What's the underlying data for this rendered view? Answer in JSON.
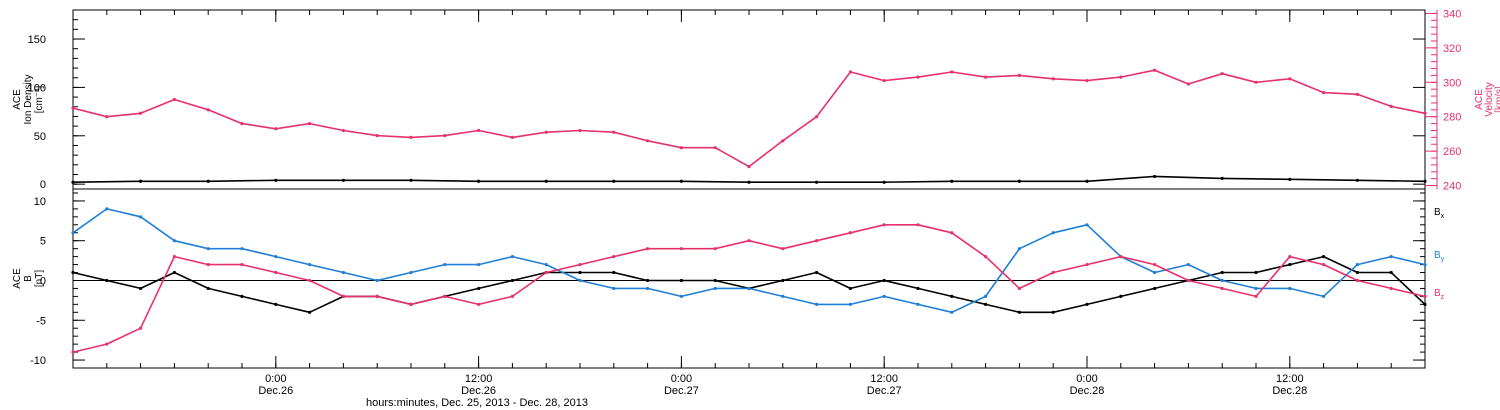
{
  "colors": {
    "axis": "#000000",
    "density": "#000000",
    "velocity": "#e8306a",
    "bx": "#000000",
    "by": "#1f7fd6",
    "bz": "#e8306a",
    "background": "#ffffff"
  },
  "chart_data": [
    {
      "type": "scatter",
      "panel": "plasma",
      "left_axis": {
        "label_lines": [
          "ACE",
          "Ion Density",
          "[cm⁻³]"
        ],
        "ylim": [
          -5,
          180
        ],
        "ticks": [
          0,
          50,
          100,
          150
        ],
        "tick_labels": [
          "0",
          "50",
          "100",
          "150"
        ]
      },
      "right_axis": {
        "label_lines": [
          "ACE",
          "Velocity",
          "[km/s]"
        ],
        "ylim": [
          238,
          342
        ],
        "ticks": [
          240,
          260,
          280,
          300,
          320,
          340
        ],
        "tick_labels": [
          "240",
          "260",
          "280",
          "300",
          "320",
          "340"
        ],
        "color": "#e8306a"
      },
      "xlim_hours": [
        0,
        80
      ],
      "series": [
        {
          "axis": "left",
          "color": "#000000",
          "x": [
            0,
            4,
            8,
            12,
            16,
            20,
            24,
            28,
            32,
            36,
            40,
            44,
            48,
            52,
            56,
            60,
            64,
            68,
            72,
            76,
            80
          ],
          "y": [
            2,
            3,
            3,
            4,
            4,
            4,
            3,
            3,
            3,
            3,
            2,
            2,
            2,
            3,
            3,
            3,
            8,
            6,
            5,
            4,
            3
          ]
        },
        {
          "axis": "right",
          "color": "#e8306a",
          "x": [
            0,
            2,
            4,
            6,
            8,
            10,
            12,
            14,
            16,
            18,
            20,
            22,
            24,
            26,
            28,
            30,
            32,
            34,
            36,
            38,
            40,
            42,
            44,
            46,
            48,
            50,
            52,
            54,
            56,
            58,
            60,
            62,
            64,
            66,
            68,
            70,
            72,
            74,
            76,
            78,
            80
          ],
          "y": [
            285,
            280,
            282,
            290,
            284,
            276,
            273,
            276,
            272,
            269,
            268,
            269,
            272,
            268,
            271,
            272,
            271,
            266,
            262,
            262,
            251,
            266,
            280,
            306,
            301,
            303,
            306,
            303,
            304,
            302,
            301,
            303,
            307,
            299,
            305,
            300,
            302,
            294,
            293,
            286,
            282
          ]
        }
      ]
    },
    {
      "type": "scatter",
      "panel": "magnetic_field",
      "left_axis": {
        "label_lines": [
          "ACE",
          "B",
          "[nT]"
        ],
        "ylim": [
          -11,
          11.5
        ],
        "ticks": [
          -10,
          -5,
          0,
          5,
          10
        ],
        "tick_labels": [
          "-10",
          "-5",
          "0",
          "5",
          "10"
        ]
      },
      "xlim_hours": [
        0,
        80
      ],
      "zero_line": true,
      "legend": [
        {
          "label": "B",
          "sub": "x",
          "color": "#000000"
        },
        {
          "label": "B",
          "sub": "y",
          "color": "#1f7fd6"
        },
        {
          "label": "B",
          "sub": "z",
          "color": "#e8306a"
        }
      ],
      "series": [
        {
          "name": "Bx",
          "color": "#000000",
          "x": [
            0,
            2,
            4,
            6,
            8,
            10,
            12,
            14,
            16,
            18,
            20,
            22,
            24,
            26,
            28,
            30,
            32,
            34,
            36,
            38,
            40,
            42,
            44,
            46,
            48,
            50,
            52,
            54,
            56,
            58,
            60,
            62,
            64,
            66,
            68,
            70,
            72,
            74,
            76,
            78,
            80
          ],
          "y": [
            1,
            0,
            -1,
            1,
            -1,
            -2,
            -3,
            -4,
            -2,
            -2,
            -3,
            -2,
            -1,
            0,
            1,
            1,
            1,
            0,
            0,
            0,
            -1,
            0,
            1,
            -1,
            0,
            -1,
            -2,
            -3,
            -4,
            -4,
            -3,
            -2,
            -1,
            0,
            1,
            1,
            2,
            3,
            1,
            1,
            -3
          ]
        },
        {
          "name": "By",
          "color": "#1f7fd6",
          "x": [
            0,
            2,
            4,
            6,
            8,
            10,
            12,
            14,
            16,
            18,
            20,
            22,
            24,
            26,
            28,
            30,
            32,
            34,
            36,
            38,
            40,
            42,
            44,
            46,
            48,
            50,
            52,
            54,
            56,
            58,
            60,
            62,
            64,
            66,
            68,
            70,
            72,
            74,
            76,
            78,
            80
          ],
          "y": [
            6,
            9,
            8,
            5,
            4,
            4,
            3,
            2,
            1,
            0,
            1,
            2,
            2,
            3,
            2,
            0,
            -1,
            -1,
            -2,
            -1,
            -1,
            -2,
            -3,
            -3,
            -2,
            -3,
            -4,
            -2,
            4,
            6,
            7,
            3,
            1,
            2,
            0,
            -1,
            -1,
            -2,
            2,
            3,
            2
          ]
        },
        {
          "name": "Bz",
          "color": "#e8306a",
          "x": [
            0,
            2,
            4,
            6,
            8,
            10,
            12,
            14,
            16,
            18,
            20,
            22,
            24,
            26,
            28,
            30,
            32,
            34,
            36,
            38,
            40,
            42,
            44,
            46,
            48,
            50,
            52,
            54,
            56,
            58,
            60,
            62,
            64,
            66,
            68,
            70,
            72,
            74,
            76,
            78,
            80
          ],
          "y": [
            -9,
            -8,
            -6,
            3,
            2,
            2,
            1,
            0,
            -2,
            -2,
            -3,
            -2,
            -3,
            -2,
            1,
            2,
            3,
            4,
            4,
            4,
            5,
            4,
            5,
            6,
            7,
            7,
            6,
            3,
            -1,
            1,
            2,
            3,
            2,
            0,
            -1,
            -2,
            3,
            2,
            0,
            -1,
            -2
          ]
        }
      ]
    }
  ],
  "x_axis": {
    "title": "hours:minutes, Dec. 25, 2013 - Dec. 28, 2013",
    "xlim_hours": [
      0,
      80
    ],
    "major_ticks": [
      {
        "hour": 12,
        "time": "0:00",
        "date": "Dec.26"
      },
      {
        "hour": 24,
        "time": "12:00",
        "date": "Dec.26"
      },
      {
        "hour": 36,
        "time": "0:00",
        "date": "Dec.27"
      },
      {
        "hour": 48,
        "time": "12:00",
        "date": "Dec.27"
      },
      {
        "hour": 60,
        "time": "0:00",
        "date": "Dec.28"
      },
      {
        "hour": 72,
        "time": "12:00",
        "date": "Dec.28"
      }
    ]
  }
}
